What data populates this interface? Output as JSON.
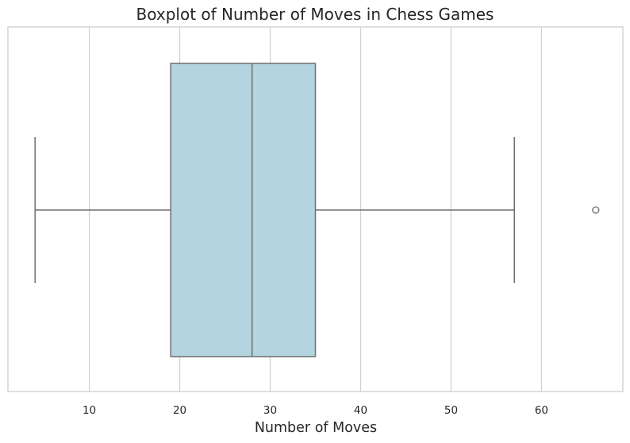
{
  "chart_data": {
    "type": "boxplot",
    "title": "Boxplot of Number of Moves in Chess Games",
    "xlabel": "Number of Moves",
    "ylabel": "",
    "orientation": "horizontal",
    "xlim": [
      1,
      69
    ],
    "xticks": [
      10,
      20,
      30,
      40,
      50,
      60
    ],
    "grid": true,
    "legend": "none",
    "box": {
      "whisker_low": 4,
      "q1": 19,
      "median": 28,
      "q3": 35,
      "whisker_high": 57,
      "outliers": [
        66
      ]
    },
    "colors": {
      "box_fill": "#b4d5e0",
      "line": "#6e6e6e",
      "grid": "#d0d0d0",
      "frame": "#cccccc",
      "text": "#262626"
    }
  }
}
